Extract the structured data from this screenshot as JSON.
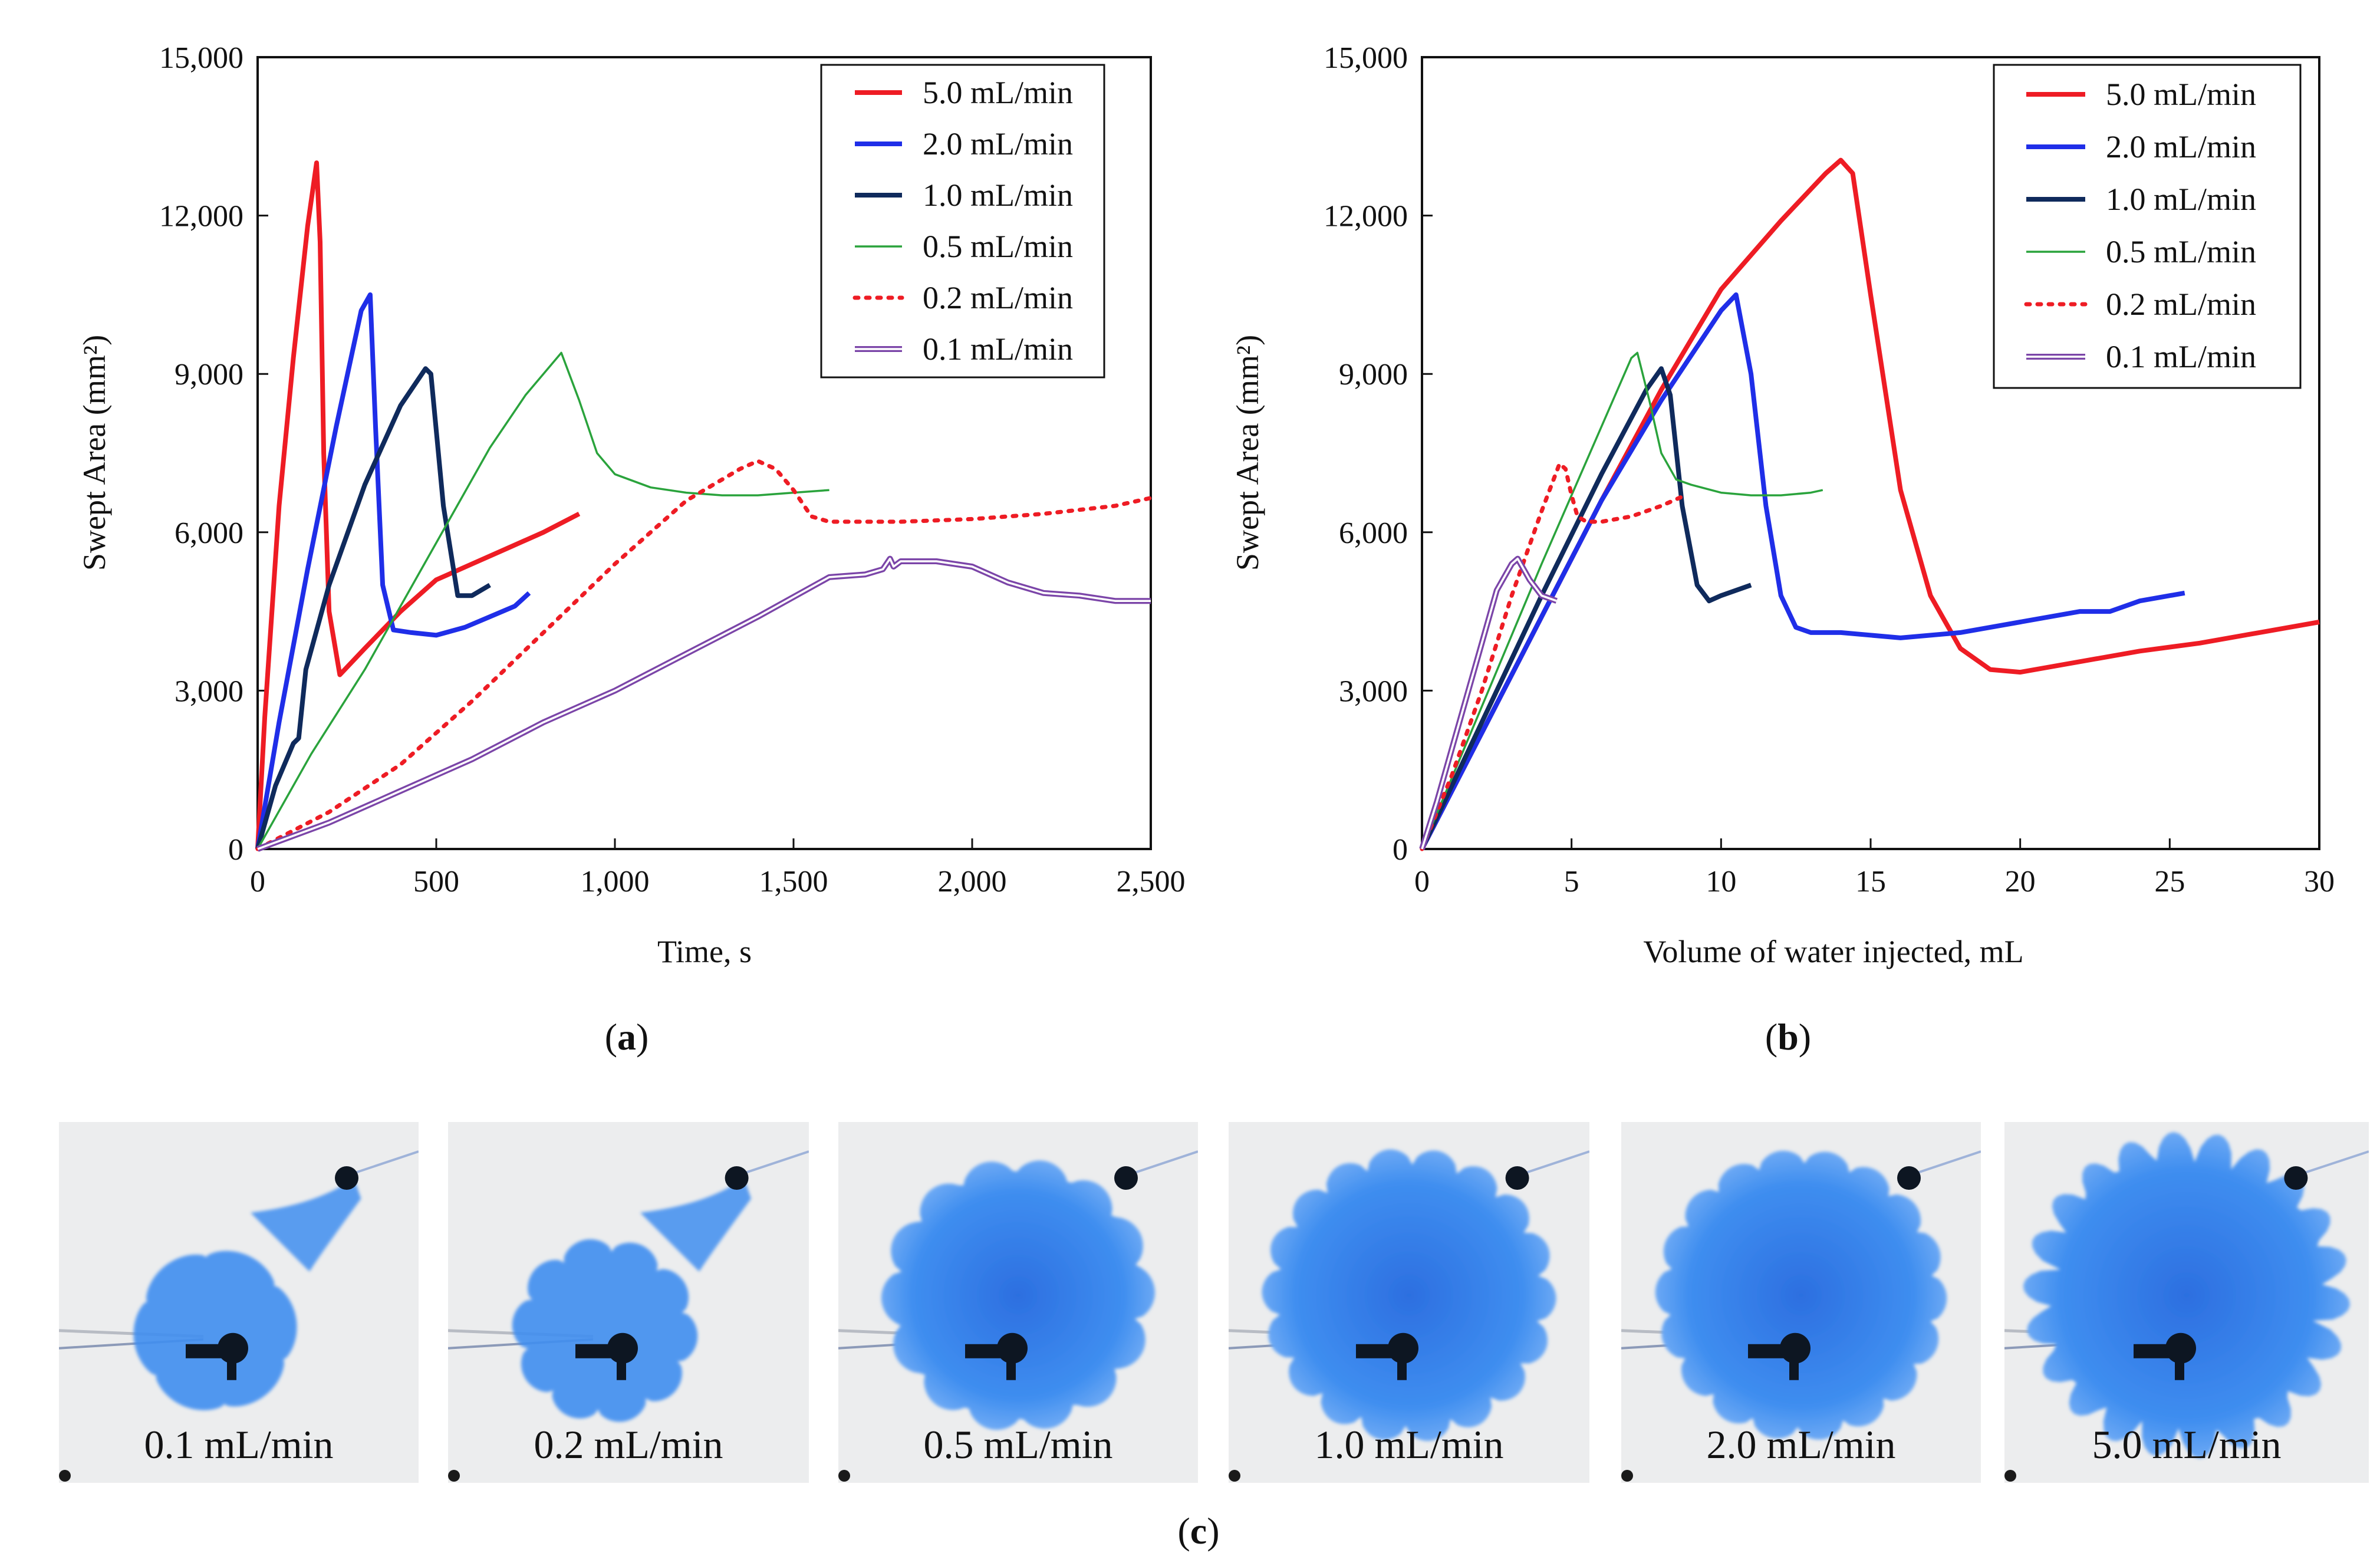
{
  "figure": {
    "panel_labels": [
      "a",
      "b",
      "c"
    ],
    "photo_captions": [
      "0.1 mL/min",
      "0.2 mL/min",
      "0.5 mL/min",
      "1.0 mL/min",
      "2.0 mL/min",
      "5.0 mL/min"
    ]
  },
  "colors": {
    "red": "#ee1c24",
    "blue": "#1f2ee8",
    "navy": "#0f2a5c",
    "green": "#2aa33c",
    "purple": "#7b45a8",
    "fluid": "#3f8ef0"
  },
  "chart_data": [
    {
      "id": "a",
      "type": "line",
      "xlabel": "Time, s",
      "ylabel": "Swept Area (mm²)",
      "xlim": [
        0,
        2500
      ],
      "ylim": [
        0,
        15000
      ],
      "xticks": [
        0,
        500,
        1000,
        1500,
        2000,
        2500
      ],
      "yticks": [
        0,
        3000,
        6000,
        9000,
        12000,
        15000
      ],
      "xtick_labels": [
        "0",
        "500",
        "1,000",
        "1,500",
        "2,000",
        "2,500"
      ],
      "ytick_labels": [
        "0",
        "3,000",
        "6,000",
        "9,000",
        "12,000",
        "15,000"
      ],
      "legend": "top-right",
      "series": [
        {
          "name": "5.0 mL/min",
          "style": "solid-thick",
          "color": "#ee1c24",
          "x": [
            0,
            20,
            60,
            100,
            140,
            165,
            175,
            185,
            200,
            230,
            300,
            400,
            500,
            600,
            700,
            800,
            900
          ],
          "y": [
            0,
            2500,
            6500,
            9300,
            11800,
            13000,
            11500,
            7500,
            4500,
            3300,
            3800,
            4500,
            5100,
            5400,
            5700,
            6000,
            6350
          ]
        },
        {
          "name": "2.0 mL/min",
          "style": "solid-thick",
          "color": "#1f2ee8",
          "x": [
            0,
            60,
            140,
            220,
            290,
            315,
            330,
            350,
            380,
            430,
            500,
            580,
            650,
            720,
            760
          ],
          "y": [
            0,
            2400,
            5300,
            8000,
            10200,
            10500,
            8000,
            5000,
            4150,
            4100,
            4050,
            4200,
            4400,
            4600,
            4850
          ]
        },
        {
          "name": "1.0 mL/min",
          "style": "solid-thick",
          "color": "#0f2a5c",
          "x": [
            0,
            50,
            100,
            115,
            135,
            200,
            300,
            400,
            470,
            485,
            520,
            560,
            600,
            650
          ],
          "y": [
            0,
            1200,
            2000,
            2100,
            3400,
            5000,
            6900,
            8400,
            9100,
            9000,
            6500,
            4800,
            4800,
            5000
          ]
        },
        {
          "name": "0.5 mL/min",
          "style": "solid-thin",
          "color": "#2aa33c",
          "x": [
            0,
            150,
            300,
            450,
            550,
            650,
            750,
            850,
            900,
            950,
            1000,
            1100,
            1200,
            1300,
            1400,
            1500,
            1600
          ],
          "y": [
            0,
            1800,
            3400,
            5200,
            6400,
            7600,
            8600,
            9400,
            8500,
            7500,
            7100,
            6850,
            6750,
            6700,
            6700,
            6750,
            6800
          ]
        },
        {
          "name": "0.2 mL/min",
          "style": "dotted",
          "color": "#ee1c24",
          "x": [
            0,
            200,
            400,
            600,
            800,
            1000,
            1200,
            1350,
            1400,
            1450,
            1500,
            1550,
            1600,
            1800,
            2000,
            2200,
            2400,
            2500
          ],
          "y": [
            0,
            700,
            1600,
            2800,
            4100,
            5400,
            6600,
            7200,
            7350,
            7200,
            6800,
            6300,
            6200,
            6200,
            6250,
            6350,
            6500,
            6650
          ]
        },
        {
          "name": "0.1 mL/min",
          "style": "double",
          "color": "#7b45a8",
          "x": [
            0,
            200,
            400,
            600,
            800,
            1000,
            1200,
            1400,
            1600,
            1700,
            1750,
            1770,
            1780,
            1800,
            1900,
            2000,
            2100,
            2200,
            2300,
            2400,
            2500
          ],
          "y": [
            0,
            500,
            1100,
            1700,
            2400,
            3000,
            3700,
            4400,
            5150,
            5200,
            5300,
            5500,
            5350,
            5450,
            5450,
            5350,
            5050,
            4850,
            4800,
            4700,
            4700
          ]
        }
      ]
    },
    {
      "id": "b",
      "type": "line",
      "xlabel": "Volume of water injected, mL",
      "ylabel": "Swept Area (mm²)",
      "xlim": [
        0,
        30
      ],
      "ylim": [
        0,
        15000
      ],
      "xticks": [
        0,
        5,
        10,
        15,
        20,
        25,
        30
      ],
      "yticks": [
        0,
        3000,
        6000,
        9000,
        12000,
        15000
      ],
      "xtick_labels": [
        "0",
        "5",
        "10",
        "15",
        "20",
        "25",
        "30"
      ],
      "ytick_labels": [
        "0",
        "3,000",
        "6,000",
        "9,000",
        "12,000",
        "15,000"
      ],
      "legend": "top-right",
      "series": [
        {
          "name": "5.0 mL/min",
          "style": "solid-thick",
          "color": "#ee1c24",
          "x": [
            0,
            2,
            4,
            6,
            8,
            10,
            12,
            13.5,
            14,
            14.4,
            15,
            16,
            17,
            18,
            19,
            20,
            22,
            24,
            26,
            28,
            30
          ],
          "y": [
            0,
            2200,
            4400,
            6600,
            8700,
            10600,
            11900,
            12800,
            13050,
            12800,
            10500,
            6800,
            4800,
            3800,
            3400,
            3350,
            3550,
            3750,
            3900,
            4100,
            4300
          ]
        },
        {
          "name": "2.0 mL/min",
          "style": "solid-thick",
          "color": "#1f2ee8",
          "x": [
            0,
            2,
            4,
            6,
            8,
            10,
            10.5,
            11,
            11.5,
            12,
            12.5,
            13,
            14,
            16,
            18,
            20,
            22,
            23,
            24,
            25.5
          ],
          "y": [
            0,
            2200,
            4400,
            6600,
            8500,
            10200,
            10500,
            9000,
            6500,
            4800,
            4200,
            4100,
            4100,
            4000,
            4100,
            4300,
            4500,
            4500,
            4700,
            4850
          ]
        },
        {
          "name": "1.0 mL/min",
          "style": "solid-thick",
          "color": "#0f2a5c",
          "x": [
            0,
            2,
            4,
            6,
            7.5,
            8,
            8.3,
            8.7,
            9.2,
            9.6,
            10,
            11
          ],
          "y": [
            0,
            2400,
            4800,
            7100,
            8700,
            9100,
            8600,
            6500,
            5000,
            4700,
            4800,
            5000
          ]
        },
        {
          "name": "0.5 mL/min",
          "style": "solid-thin",
          "color": "#2aa33c",
          "x": [
            0,
            2,
            4,
            6,
            7,
            7.2,
            7.6,
            8,
            8.5,
            9,
            10,
            11,
            12,
            13,
            13.4
          ],
          "y": [
            0,
            2700,
            5400,
            8000,
            9300,
            9400,
            8500,
            7500,
            7000,
            6900,
            6750,
            6700,
            6700,
            6750,
            6800
          ]
        },
        {
          "name": "0.2 mL/min",
          "style": "dotted",
          "color": "#ee1c24",
          "x": [
            0,
            1,
            2,
            3,
            4,
            4.6,
            4.8,
            5,
            5.2,
            5.5,
            6,
            7,
            8,
            8.8
          ],
          "y": [
            0,
            1400,
            3000,
            4800,
            6400,
            7300,
            7200,
            6700,
            6300,
            6200,
            6200,
            6300,
            6500,
            6700
          ]
        },
        {
          "name": "0.1 mL/min",
          "style": "double",
          "color": "#7b45a8",
          "x": [
            0,
            0.5,
            1,
            1.5,
            2,
            2.5,
            3,
            3.2,
            3.4,
            3.6,
            4,
            4.5
          ],
          "y": [
            0,
            900,
            1900,
            2900,
            3900,
            4900,
            5400,
            5500,
            5300,
            5100,
            4800,
            4700
          ]
        }
      ]
    }
  ]
}
